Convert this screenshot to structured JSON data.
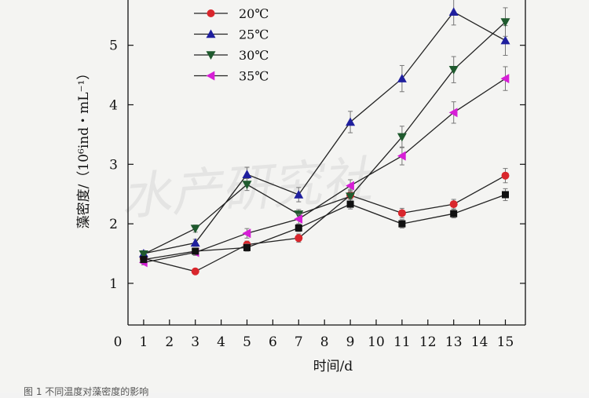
{
  "chart_data": {
    "type": "line",
    "title": "",
    "xlabel": "时间/d",
    "ylabel": "藻密度/（10⁶ind・mL⁻¹）",
    "xlim": [
      0,
      15
    ],
    "ylim": [
      0.3,
      5.8
    ],
    "x_ticks": [
      "0",
      "1",
      "2",
      "3",
      "4",
      "5",
      "6",
      "7",
      "8",
      "9",
      "10",
      "11",
      "12",
      "13",
      "14",
      "15"
    ],
    "y_ticks": [
      "1",
      "2",
      "3",
      "4",
      "5"
    ],
    "grid": false,
    "legend_position": "top-left",
    "series": [
      {
        "name": "20℃",
        "marker": "circle",
        "color": "#d9262c",
        "x": [
          1,
          3,
          5,
          7,
          9,
          11,
          13,
          15
        ],
        "y": [
          1.42,
          1.2,
          1.65,
          1.76,
          2.48,
          2.18,
          2.33,
          2.81
        ],
        "err": [
          0.05,
          0.04,
          0.06,
          0.07,
          0.1,
          0.08,
          0.08,
          0.12
        ]
      },
      {
        "name": "25℃",
        "marker": "triangle-up",
        "color": "#1f1f9e",
        "x": [
          1,
          3,
          5,
          7,
          9,
          11,
          13,
          15
        ],
        "y": [
          1.5,
          1.68,
          2.83,
          2.49,
          3.71,
          4.44,
          5.56,
          5.08
        ],
        "err": [
          0.05,
          0.06,
          0.12,
          0.12,
          0.18,
          0.22,
          0.22,
          0.25
        ]
      },
      {
        "name": "30℃",
        "marker": "triangle-down",
        "color": "#1f5a2e",
        "x": [
          1,
          3,
          5,
          7,
          9,
          11,
          13,
          15
        ],
        "y": [
          1.49,
          1.92,
          2.66,
          2.16,
          2.46,
          3.46,
          4.59,
          5.39
        ],
        "err": [
          0.05,
          0.06,
          0.1,
          0.08,
          0.1,
          0.18,
          0.22,
          0.24
        ]
      },
      {
        "name": "35℃",
        "marker": "triangle-left",
        "color": "#d61ed6",
        "x": [
          1,
          3,
          5,
          7,
          9,
          11,
          13,
          15
        ],
        "y": [
          1.35,
          1.52,
          1.84,
          2.08,
          2.64,
          3.14,
          3.87,
          4.44
        ],
        "err": [
          0.04,
          0.05,
          0.08,
          0.08,
          0.1,
          0.15,
          0.18,
          0.2
        ]
      },
      {
        "name": "",
        "marker": "square",
        "color": "#111111",
        "x": [
          1,
          3,
          5,
          7,
          9,
          11,
          13,
          15
        ],
        "y": [
          1.4,
          1.54,
          1.6,
          1.93,
          2.33,
          2.0,
          2.17,
          2.49
        ],
        "err": [
          0.04,
          0.05,
          0.06,
          0.06,
          0.08,
          0.07,
          0.07,
          0.1
        ]
      }
    ],
    "watermark": "水产研究社"
  },
  "caption": "图 1  不同温度对藻密度的影响"
}
